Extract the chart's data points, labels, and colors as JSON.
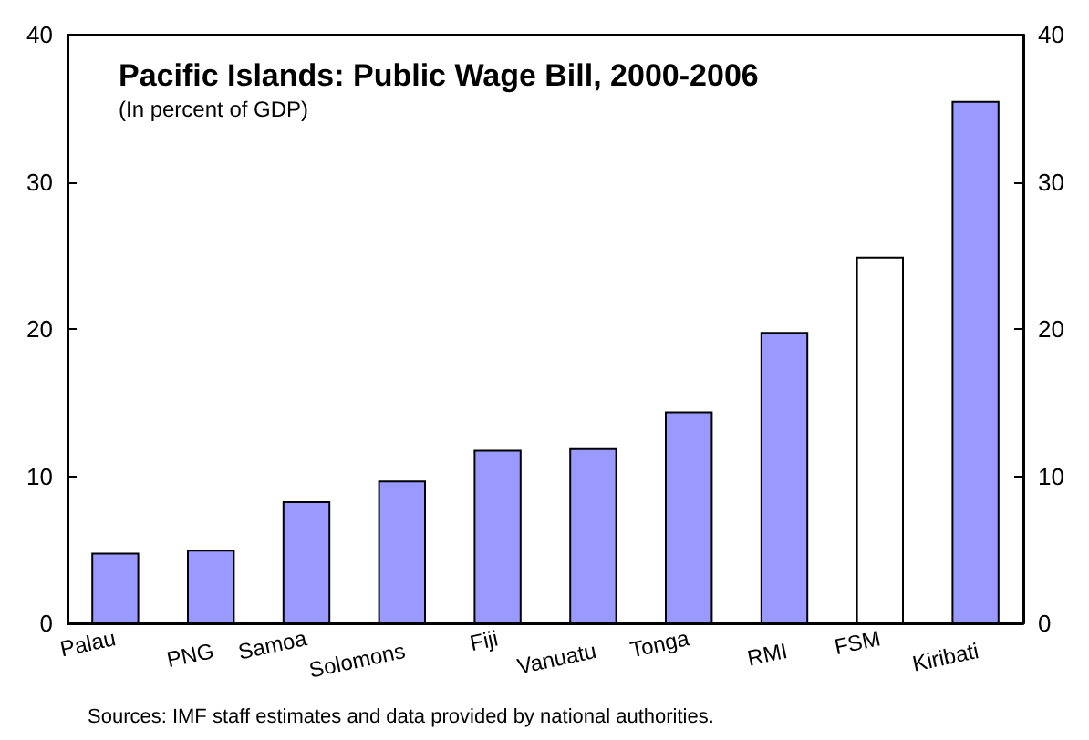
{
  "chart_data": {
    "type": "bar",
    "title": "Pacific Islands: Public Wage Bill, 2000-2006",
    "subtitle": "(In percent of GDP)",
    "categories": [
      "Palau",
      "PNG",
      "Samoa",
      "Solomons",
      "Fiji",
      "Vanuatu",
      "Tonga",
      "RMI",
      "FSM",
      "Kiribati"
    ],
    "values": [
      4.8,
      5.0,
      8.3,
      9.7,
      11.8,
      11.9,
      14.4,
      19.8,
      24.9,
      35.5
    ],
    "colors": [
      "#9999ff",
      "#9999ff",
      "#9999ff",
      "#9999ff",
      "#9999ff",
      "#9999ff",
      "#9999ff",
      "#9999ff",
      "#ffffff",
      "#9999ff"
    ],
    "ylim": [
      0,
      40
    ],
    "yticks": [
      0,
      10,
      20,
      30,
      40
    ],
    "y2lim": [
      0,
      40
    ],
    "y2ticks": [
      0,
      10,
      20,
      30,
      40
    ],
    "annotations": [
      "Sources: IMF staff estimates and data provided by national authorities."
    ]
  }
}
